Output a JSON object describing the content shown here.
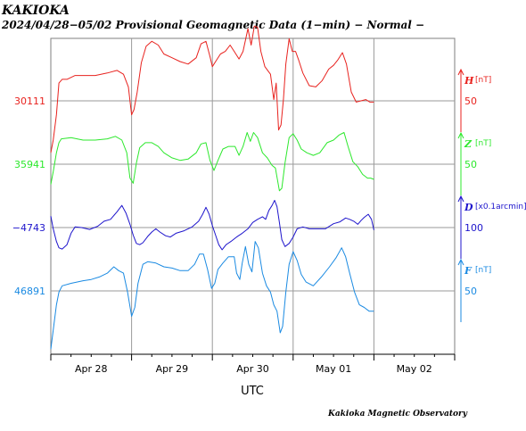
{
  "header": {
    "station": "KAKIOKA",
    "subtitle": "2024/04/28−05/02  Provisional Geomagnetic Data (1−min)  − Normal −"
  },
  "footer": {
    "credit": "Kakioka Magnetic Observatory"
  },
  "chart_data": {
    "type": "line",
    "xlabel": "UTC",
    "x_ticks": [
      "Apr 28",
      "Apr 29",
      "Apr 30",
      "May 01",
      "May 02"
    ],
    "x_range_days": [
      0,
      5
    ],
    "data_end_day": 4.0,
    "grid": true,
    "series": [
      {
        "name": "H",
        "unit": "[nT]",
        "baseline": "30111",
        "scale": "50",
        "scale_nT": 50,
        "color": "#e8221e",
        "offset": 30111,
        "points": [
          [
            0,
            30070
          ],
          [
            0.03,
            30080
          ],
          [
            0.07,
            30100
          ],
          [
            0.1,
            30125
          ],
          [
            0.14,
            30128
          ],
          [
            0.2,
            30128
          ],
          [
            0.3,
            30131
          ],
          [
            0.4,
            30131
          ],
          [
            0.55,
            30131
          ],
          [
            0.7,
            30133
          ],
          [
            0.82,
            30135
          ],
          [
            0.9,
            30132
          ],
          [
            0.96,
            30122
          ],
          [
            1.0,
            30100
          ],
          [
            1.03,
            30104
          ],
          [
            1.07,
            30118
          ],
          [
            1.12,
            30141
          ],
          [
            1.18,
            30154
          ],
          [
            1.25,
            30158
          ],
          [
            1.33,
            30155
          ],
          [
            1.4,
            30148
          ],
          [
            1.5,
            30145
          ],
          [
            1.6,
            30142
          ],
          [
            1.7,
            30140
          ],
          [
            1.8,
            30145
          ],
          [
            1.86,
            30156
          ],
          [
            1.92,
            30158
          ],
          [
            1.97,
            30146
          ],
          [
            2.0,
            30138
          ],
          [
            2.04,
            30142
          ],
          [
            2.1,
            30148
          ],
          [
            2.16,
            30150
          ],
          [
            2.22,
            30155
          ],
          [
            2.28,
            30149
          ],
          [
            2.33,
            30144
          ],
          [
            2.38,
            30150
          ],
          [
            2.44,
            30168
          ],
          [
            2.48,
            30155
          ],
          [
            2.52,
            30170
          ],
          [
            2.56,
            30169
          ],
          [
            2.6,
            30150
          ],
          [
            2.65,
            30138
          ],
          [
            2.72,
            30132
          ],
          [
            2.76,
            30112
          ],
          [
            2.79,
            30125
          ],
          [
            2.82,
            30088
          ],
          [
            2.85,
            30092
          ],
          [
            2.88,
            30112
          ],
          [
            2.91,
            30140
          ],
          [
            2.95,
            30160
          ],
          [
            2.99,
            30150
          ],
          [
            3.03,
            30150
          ],
          [
            3.07,
            30143
          ],
          [
            3.12,
            30133
          ],
          [
            3.2,
            30123
          ],
          [
            3.28,
            30122
          ],
          [
            3.36,
            30127
          ],
          [
            3.44,
            30136
          ],
          [
            3.5,
            30139
          ],
          [
            3.55,
            30143
          ],
          [
            3.61,
            30149
          ],
          [
            3.66,
            30140
          ],
          [
            3.72,
            30118
          ],
          [
            3.78,
            30110
          ],
          [
            3.84,
            30111
          ],
          [
            3.9,
            30112
          ],
          [
            3.95,
            30110
          ],
          [
            4.0,
            30110
          ]
        ]
      },
      {
        "name": "Z",
        "unit": "[nT]",
        "baseline": "35941",
        "scale": "50",
        "scale_nT": 50,
        "color": "#2ce82c",
        "offset": 35941,
        "points": [
          [
            0,
            35925
          ],
          [
            0.03,
            35935
          ],
          [
            0.07,
            35950
          ],
          [
            0.1,
            35958
          ],
          [
            0.13,
            35961
          ],
          [
            0.25,
            35962
          ],
          [
            0.4,
            35960
          ],
          [
            0.55,
            35960
          ],
          [
            0.7,
            35961
          ],
          [
            0.8,
            35963
          ],
          [
            0.88,
            35960
          ],
          [
            0.94,
            35950
          ],
          [
            0.98,
            35930
          ],
          [
            1.02,
            35926
          ],
          [
            1.06,
            35942
          ],
          [
            1.1,
            35954
          ],
          [
            1.17,
            35958
          ],
          [
            1.25,
            35958
          ],
          [
            1.33,
            35955
          ],
          [
            1.4,
            35950
          ],
          [
            1.5,
            35946
          ],
          [
            1.6,
            35944
          ],
          [
            1.7,
            35945
          ],
          [
            1.8,
            35950
          ],
          [
            1.86,
            35957
          ],
          [
            1.92,
            35958
          ],
          [
            1.97,
            35944
          ],
          [
            2.02,
            35936
          ],
          [
            2.07,
            35944
          ],
          [
            2.13,
            35953
          ],
          [
            2.2,
            35955
          ],
          [
            2.28,
            35955
          ],
          [
            2.33,
            35948
          ],
          [
            2.38,
            35955
          ],
          [
            2.43,
            35966
          ],
          [
            2.47,
            35959
          ],
          [
            2.51,
            35966
          ],
          [
            2.56,
            35962
          ],
          [
            2.62,
            35950
          ],
          [
            2.68,
            35946
          ],
          [
            2.74,
            35940
          ],
          [
            2.78,
            35938
          ],
          [
            2.83,
            35920
          ],
          [
            2.86,
            35922
          ],
          [
            2.9,
            35942
          ],
          [
            2.95,
            35962
          ],
          [
            3.0,
            35965
          ],
          [
            3.05,
            35960
          ],
          [
            3.1,
            35953
          ],
          [
            3.17,
            35950
          ],
          [
            3.25,
            35948
          ],
          [
            3.33,
            35950
          ],
          [
            3.42,
            35958
          ],
          [
            3.5,
            35960
          ],
          [
            3.57,
            35964
          ],
          [
            3.63,
            35966
          ],
          [
            3.68,
            35955
          ],
          [
            3.74,
            35943
          ],
          [
            3.8,
            35939
          ],
          [
            3.86,
            35933
          ],
          [
            3.92,
            35930
          ],
          [
            3.96,
            35930
          ],
          [
            4.0,
            35929
          ]
        ]
      },
      {
        "name": "D",
        "unit": "[x0.1arcmin]",
        "baseline": "−4743",
        "scale": "100",
        "scale_nT": 100,
        "color": "#1d14cc",
        "offset": -4743,
        "points": [
          [
            0,
            -4725
          ],
          [
            0.03,
            -4745
          ],
          [
            0.07,
            -4765
          ],
          [
            0.1,
            -4775
          ],
          [
            0.14,
            -4777
          ],
          [
            0.2,
            -4770
          ],
          [
            0.25,
            -4752
          ],
          [
            0.3,
            -4742
          ],
          [
            0.38,
            -4743
          ],
          [
            0.48,
            -4746
          ],
          [
            0.58,
            -4741
          ],
          [
            0.66,
            -4733
          ],
          [
            0.74,
            -4730
          ],
          [
            0.82,
            -4718
          ],
          [
            0.88,
            -4708
          ],
          [
            0.93,
            -4720
          ],
          [
            0.98,
            -4738
          ],
          [
            1.02,
            -4755
          ],
          [
            1.06,
            -4768
          ],
          [
            1.1,
            -4770
          ],
          [
            1.14,
            -4767
          ],
          [
            1.2,
            -4757
          ],
          [
            1.25,
            -4750
          ],
          [
            1.3,
            -4745
          ],
          [
            1.35,
            -4750
          ],
          [
            1.42,
            -4756
          ],
          [
            1.48,
            -4758
          ],
          [
            1.55,
            -4752
          ],
          [
            1.65,
            -4748
          ],
          [
            1.75,
            -4742
          ],
          [
            1.83,
            -4733
          ],
          [
            1.88,
            -4722
          ],
          [
            1.92,
            -4711
          ],
          [
            1.96,
            -4722
          ],
          [
            2.0,
            -4740
          ],
          [
            2.04,
            -4755
          ],
          [
            2.08,
            -4770
          ],
          [
            2.12,
            -4778
          ],
          [
            2.17,
            -4770
          ],
          [
            2.23,
            -4765
          ],
          [
            2.3,
            -4758
          ],
          [
            2.37,
            -4752
          ],
          [
            2.44,
            -4745
          ],
          [
            2.5,
            -4735
          ],
          [
            2.56,
            -4730
          ],
          [
            2.62,
            -4726
          ],
          [
            2.66,
            -4730
          ],
          [
            2.7,
            -4716
          ],
          [
            2.74,
            -4708
          ],
          [
            2.77,
            -4700
          ],
          [
            2.8,
            -4710
          ],
          [
            2.83,
            -4735
          ],
          [
            2.86,
            -4762
          ],
          [
            2.9,
            -4773
          ],
          [
            2.95,
            -4768
          ],
          [
            3.0,
            -4758
          ],
          [
            3.05,
            -4745
          ],
          [
            3.12,
            -4742
          ],
          [
            3.2,
            -4745
          ],
          [
            3.3,
            -4745
          ],
          [
            3.4,
            -4745
          ],
          [
            3.5,
            -4737
          ],
          [
            3.58,
            -4734
          ],
          [
            3.65,
            -4728
          ],
          [
            3.7,
            -4730
          ],
          [
            3.75,
            -4733
          ],
          [
            3.8,
            -4738
          ],
          [
            3.84,
            -4732
          ],
          [
            3.88,
            -4727
          ],
          [
            3.93,
            -4722
          ],
          [
            3.97,
            -4730
          ],
          [
            4.0,
            -4747
          ]
        ]
      },
      {
        "name": "F",
        "unit": "[nT]",
        "baseline": "46891",
        "scale": "50",
        "scale_nT": 50,
        "color": "#1a8ae2",
        "offset": 46891,
        "points": [
          [
            0,
            46845
          ],
          [
            0.03,
            46860
          ],
          [
            0.07,
            46880
          ],
          [
            0.1,
            46890
          ],
          [
            0.14,
            46895
          ],
          [
            0.25,
            46897
          ],
          [
            0.4,
            46899
          ],
          [
            0.5,
            46900
          ],
          [
            0.6,
            46902
          ],
          [
            0.7,
            46905
          ],
          [
            0.78,
            46910
          ],
          [
            0.84,
            46907
          ],
          [
            0.9,
            46905
          ],
          [
            0.95,
            46890
          ],
          [
            1.0,
            46871
          ],
          [
            1.04,
            46878
          ],
          [
            1.08,
            46897
          ],
          [
            1.14,
            46912
          ],
          [
            1.2,
            46914
          ],
          [
            1.3,
            46913
          ],
          [
            1.4,
            46910
          ],
          [
            1.5,
            46909
          ],
          [
            1.6,
            46907
          ],
          [
            1.7,
            46907
          ],
          [
            1.78,
            46912
          ],
          [
            1.84,
            46920
          ],
          [
            1.89,
            46920
          ],
          [
            1.94,
            46908
          ],
          [
            1.99,
            46893
          ],
          [
            2.03,
            46897
          ],
          [
            2.07,
            46908
          ],
          [
            2.13,
            46913
          ],
          [
            2.2,
            46918
          ],
          [
            2.27,
            46918
          ],
          [
            2.3,
            46905
          ],
          [
            2.34,
            46900
          ],
          [
            2.37,
            46913
          ],
          [
            2.41,
            46926
          ],
          [
            2.45,
            46912
          ],
          [
            2.49,
            46906
          ],
          [
            2.53,
            46930
          ],
          [
            2.57,
            46925
          ],
          [
            2.62,
            46905
          ],
          [
            2.67,
            46895
          ],
          [
            2.72,
            46890
          ],
          [
            2.76,
            46880
          ],
          [
            2.8,
            46875
          ],
          [
            2.84,
            46858
          ],
          [
            2.87,
            46863
          ],
          [
            2.91,
            46890
          ],
          [
            2.95,
            46912
          ],
          [
            3.0,
            46922
          ],
          [
            3.05,
            46915
          ],
          [
            3.1,
            46904
          ],
          [
            3.16,
            46898
          ],
          [
            3.25,
            46895
          ],
          [
            3.35,
            46902
          ],
          [
            3.45,
            46910
          ],
          [
            3.53,
            46917
          ],
          [
            3.6,
            46925
          ],
          [
            3.65,
            46918
          ],
          [
            3.7,
            46905
          ],
          [
            3.76,
            46890
          ],
          [
            3.82,
            46880
          ],
          [
            3.88,
            46878
          ],
          [
            3.94,
            46875
          ],
          [
            4.0,
            46875
          ]
        ]
      }
    ]
  }
}
